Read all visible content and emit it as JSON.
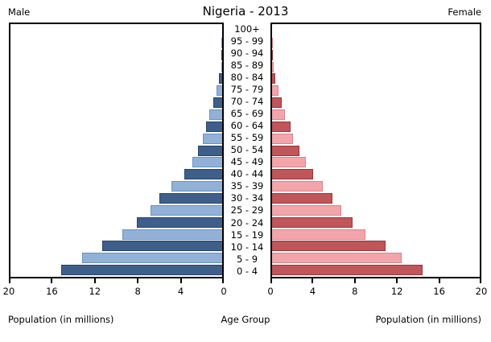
{
  "header": {
    "left_label": "Male",
    "title": "Nigeria - 2013",
    "right_label": "Female"
  },
  "footer": {
    "left_axis_label": "Population (in millions)",
    "center_label": "Age Group",
    "right_axis_label": "Population (in millions)"
  },
  "colors": {
    "male_dark": "#3E5F8A",
    "male_light": "#91B1D7",
    "male_dark_border": "#24436B",
    "male_light_border": "#6A92C4",
    "female_dark": "#C0555A",
    "female_light": "#F2A5AA",
    "female_dark_border": "#93383D",
    "female_light_border": "#DE8288",
    "axis": "#000000"
  },
  "chart_data": {
    "type": "bar",
    "subtype": "population_pyramid",
    "title": "Nigeria - 2013",
    "xlabel": "Population (in millions)",
    "center_axis_label": "Age Group",
    "xlim": [
      0,
      20
    ],
    "x_ticks_male": [
      20,
      16,
      12,
      8,
      4,
      0
    ],
    "x_ticks_female": [
      0,
      4,
      8,
      12,
      16,
      20
    ],
    "grid": false,
    "categories_top_to_bottom": [
      "100+",
      "95 - 99",
      "90 - 94",
      "85 - 89",
      "80 - 84",
      "75 - 79",
      "70 - 74",
      "65 - 69",
      "60 - 64",
      "55 - 59",
      "50 - 54",
      "45 - 49",
      "40 - 44",
      "35 - 39",
      "30 - 34",
      "25 - 29",
      "20 - 24",
      "15 - 19",
      "10 - 14",
      "5 - 9",
      "0 - 4"
    ],
    "series": [
      {
        "name": "Male",
        "side": "left",
        "values": [
          0.0,
          0.01,
          0.04,
          0.1,
          0.3,
          0.5,
          0.8,
          1.2,
          1.55,
          1.8,
          2.25,
          2.8,
          3.6,
          4.8,
          5.9,
          6.8,
          8.1,
          9.4,
          11.3,
          13.2,
          15.2
        ]
      },
      {
        "name": "Female",
        "side": "right",
        "values": [
          0.0,
          0.01,
          0.05,
          0.13,
          0.32,
          0.62,
          0.92,
          1.25,
          1.75,
          2.05,
          2.65,
          3.25,
          3.95,
          4.9,
          5.85,
          6.7,
          7.75,
          9.0,
          10.9,
          12.5,
          14.5
        ]
      }
    ]
  }
}
